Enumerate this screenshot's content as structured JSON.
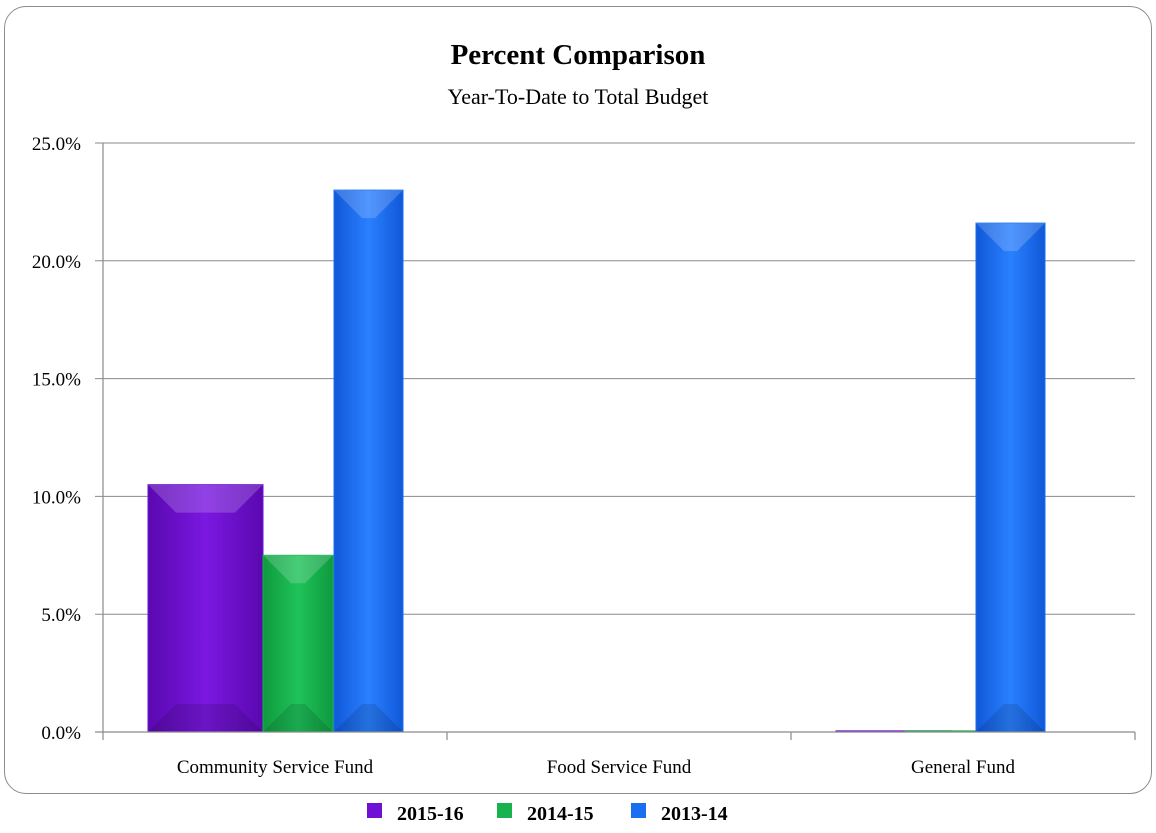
{
  "chart_data": {
    "type": "bar",
    "title": "Percent Comparison",
    "subtitle": "Year-To-Date to Total Budget",
    "categories": [
      "Community Service Fund",
      "Food Service Fund",
      "General Fund"
    ],
    "series": [
      {
        "name": "2015-16",
        "color": "#6f10d4",
        "values": [
          10.5,
          0.0,
          0.05
        ]
      },
      {
        "name": "2014-15",
        "color": "#18b24e",
        "values": [
          7.5,
          0.0,
          0.05
        ]
      },
      {
        "name": "2013-14",
        "color": "#1a6ff0",
        "values": [
          23.0,
          0.0,
          21.6
        ]
      }
    ],
    "ylim": [
      0,
      25
    ],
    "yticks": [
      "0.0%",
      "5.0%",
      "10.0%",
      "15.0%",
      "20.0%",
      "25.0%"
    ],
    "ytick_values": [
      0,
      5,
      10,
      15,
      20,
      25
    ],
    "grid": true,
    "legend": "bottom"
  }
}
